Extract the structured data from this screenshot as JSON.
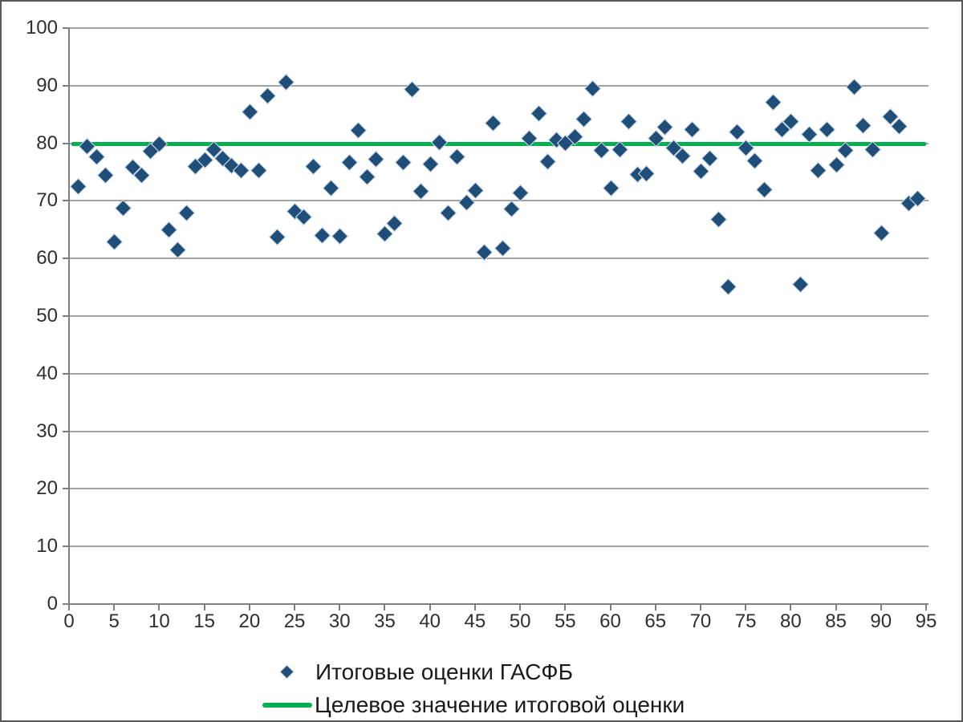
{
  "colors": {
    "background": "#ffffff",
    "frame_border": "#58595b",
    "gridline": "#a3a3a3",
    "axis": "#7f7f7f",
    "tick_label": "#2f2f2f",
    "legend_text": "#1a1a1a",
    "series_marker": "#1f4e79",
    "target_line": "#00b050"
  },
  "chart_data": {
    "type": "scatter",
    "title": "",
    "xlabel": "",
    "ylabel": "",
    "xlim": [
      0,
      95
    ],
    "ylim": [
      0,
      100
    ],
    "x_ticks": [
      0,
      5,
      10,
      15,
      20,
      25,
      30,
      35,
      40,
      45,
      50,
      55,
      60,
      65,
      70,
      75,
      80,
      85,
      90,
      95
    ],
    "y_ticks": [
      0,
      10,
      20,
      30,
      40,
      50,
      60,
      70,
      80,
      90,
      100
    ],
    "grid": "horizontal",
    "legend_position": "bottom-center",
    "series": [
      {
        "name": "Итоговые оценки ГАСФБ",
        "type": "scatter",
        "marker": "diamond",
        "color": "#1f4e79",
        "points": [
          [
            1,
            72.5
          ],
          [
            2,
            79.5
          ],
          [
            3,
            77.7
          ],
          [
            4,
            74.5
          ],
          [
            5,
            63.0
          ],
          [
            6,
            68.8
          ],
          [
            7,
            75.9
          ],
          [
            8,
            74.5
          ],
          [
            9,
            78.7
          ],
          [
            10,
            80.0
          ],
          [
            11,
            65.0
          ],
          [
            12,
            61.5
          ],
          [
            13,
            68.0
          ],
          [
            14,
            76.0
          ],
          [
            15,
            77.2
          ],
          [
            16,
            79.0
          ],
          [
            17,
            77.4
          ],
          [
            18,
            76.2
          ],
          [
            19,
            75.3
          ],
          [
            20,
            85.5
          ],
          [
            21,
            75.3
          ],
          [
            22,
            88.3
          ],
          [
            23,
            63.8
          ],
          [
            24,
            90.6
          ],
          [
            25,
            68.2
          ],
          [
            26,
            67.3
          ],
          [
            27,
            76.0
          ],
          [
            28,
            64.1
          ],
          [
            29,
            72.3
          ],
          [
            30,
            63.9
          ],
          [
            31,
            76.8
          ],
          [
            32,
            82.3
          ],
          [
            33,
            74.3
          ],
          [
            34,
            77.3
          ],
          [
            35,
            64.4
          ],
          [
            36,
            66.1
          ],
          [
            37,
            76.8
          ],
          [
            38,
            89.4
          ],
          [
            39,
            71.7
          ],
          [
            40,
            76.4
          ],
          [
            41,
            80.2
          ],
          [
            42,
            67.9
          ],
          [
            43,
            77.7
          ],
          [
            44,
            69.8
          ],
          [
            45,
            71.9
          ],
          [
            46,
            61.2
          ],
          [
            47,
            83.6
          ],
          [
            48,
            61.9
          ],
          [
            49,
            68.7
          ],
          [
            50,
            71.4
          ],
          [
            51,
            80.9
          ],
          [
            52,
            85.3
          ],
          [
            53,
            76.9
          ],
          [
            54,
            80.7
          ],
          [
            55,
            80.1
          ],
          [
            56,
            81.2
          ],
          [
            57,
            84.3
          ],
          [
            58,
            89.6
          ],
          [
            59,
            78.8
          ],
          [
            60,
            72.3
          ],
          [
            61,
            78.9
          ],
          [
            62,
            83.9
          ],
          [
            63,
            74.7
          ],
          [
            64,
            74.8
          ],
          [
            65,
            80.9
          ],
          [
            66,
            82.8
          ],
          [
            67,
            79.3
          ],
          [
            68,
            77.8
          ],
          [
            69,
            82.4
          ],
          [
            70,
            75.2
          ],
          [
            71,
            77.4
          ],
          [
            72,
            66.9
          ],
          [
            73,
            55.1
          ],
          [
            74,
            82.0
          ],
          [
            75,
            79.2
          ],
          [
            76,
            77.0
          ],
          [
            77,
            72.0
          ],
          [
            78,
            87.2
          ],
          [
            79,
            82.4
          ],
          [
            80,
            83.9
          ],
          [
            81,
            55.6
          ],
          [
            82,
            81.6
          ],
          [
            83,
            75.3
          ],
          [
            84,
            82.5
          ],
          [
            85,
            76.3
          ],
          [
            86,
            78.8
          ],
          [
            87,
            89.8
          ],
          [
            88,
            83.2
          ],
          [
            89,
            79.0
          ],
          [
            90,
            64.5
          ],
          [
            91,
            84.7
          ],
          [
            92,
            83.0
          ],
          [
            93,
            69.7
          ],
          [
            94,
            70.5
          ]
        ]
      },
      {
        "name": "Целевое значение итоговой оценки",
        "type": "hline",
        "color": "#00b050",
        "y": 80
      }
    ]
  }
}
